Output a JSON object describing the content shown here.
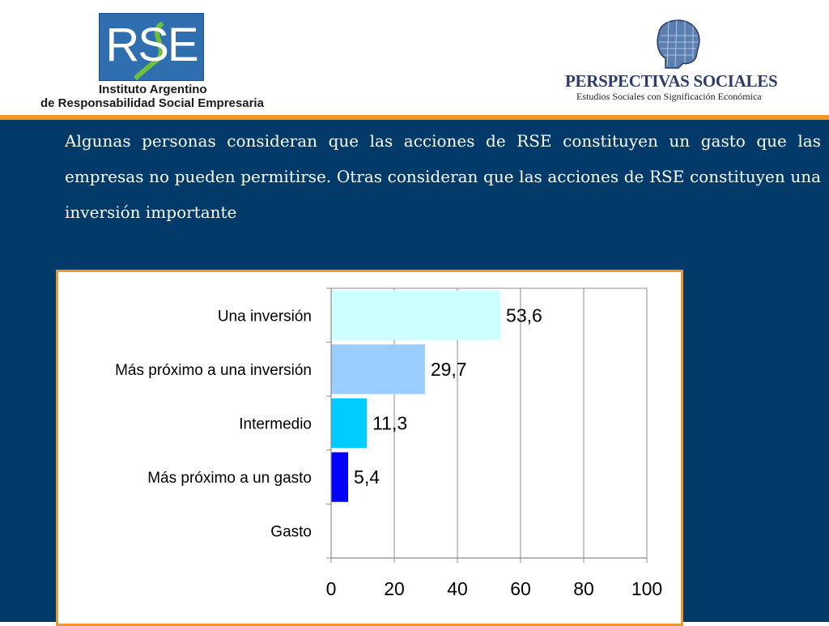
{
  "header": {
    "rse_logo_text": "RSE",
    "institute_line1": "Instituto Argentino",
    "institute_line2": "de Responsabilidad Social Empresaria",
    "ps_title": "PERSPECTIVAS SOCIALES",
    "ps_subtitle": "Estudios Sociales con Significación Económica"
  },
  "question": "Algunas personas consideran que las acciones de RSE constituyen un gasto que las empresas no pueden permitirse. Otras consideran que las acciones de RSE constituyen una inversión importante",
  "colors": {
    "header_bg": "#ffffff",
    "accent_orange": "#f0962a",
    "panel_blue": "#023a6a",
    "logo_blue": "#2f6fb0",
    "ps_title": "#2d3a6e"
  },
  "chart_data": {
    "type": "bar",
    "orientation": "horizontal",
    "categories": [
      "Una inversión",
      "Más próximo a una inversión",
      "Intermedio",
      "Más próximo a un gasto",
      "Gasto"
    ],
    "values": [
      53.6,
      29.7,
      11.3,
      5.4,
      null
    ],
    "value_labels": [
      "53,6",
      "29,7",
      "11,3",
      "5,4",
      ""
    ],
    "bar_colors": [
      "#ccffff",
      "#99ccff",
      "#00ccff",
      "#0000ff",
      "#ffffff"
    ],
    "xlim": [
      0,
      100
    ],
    "xticks": [
      "0",
      "20",
      "40",
      "60",
      "80",
      "100"
    ],
    "grid": true,
    "title": "",
    "xlabel": "",
    "ylabel": ""
  }
}
